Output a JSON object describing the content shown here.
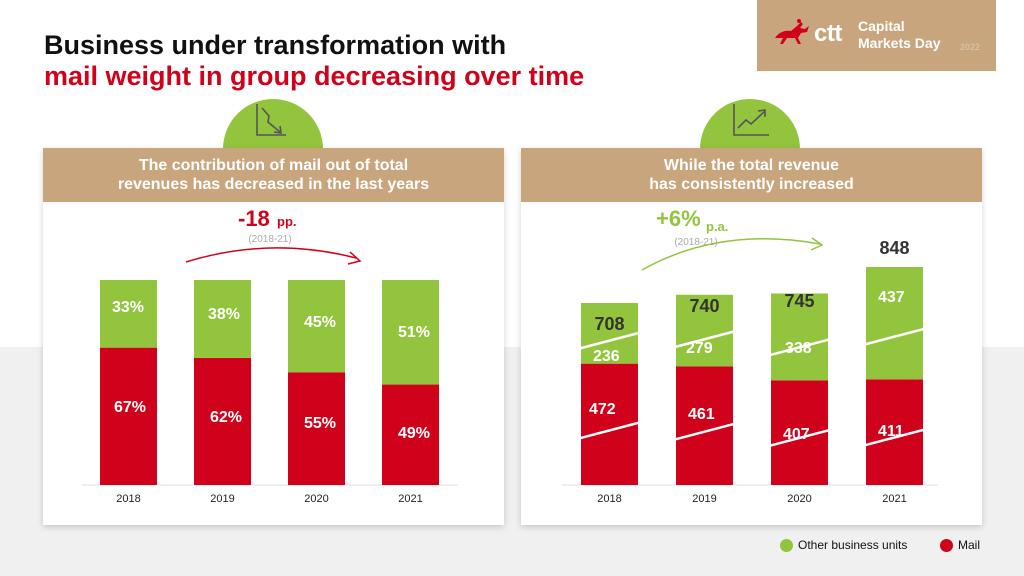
{
  "title": {
    "line1": "Business under transformation with",
    "line2": "mail weight in group decreasing over time"
  },
  "logo": {
    "brand": "ctt",
    "event_line1": "Capital",
    "event_line2": "Markets Day",
    "event_year": "2022"
  },
  "colors": {
    "mail": "#d0021b",
    "other": "#93c43d",
    "header": "#c8a57d",
    "title_red": "#d0021b"
  },
  "panels": {
    "left": {
      "header_line1": "The contribution of mail out of total",
      "header_line2": "revenues has decreased in the last years",
      "icon": "trend-down-icon"
    },
    "right": {
      "header_line1": "While the total revenue",
      "header_line2": "has consistently increased",
      "icon": "trend-up-icon"
    }
  },
  "legend": {
    "other": "Other business units",
    "mail": "Mail"
  },
  "chart_data": [
    {
      "type": "bar",
      "stacked": true,
      "normalized": true,
      "categories": [
        "2018",
        "2019",
        "2020",
        "2021"
      ],
      "series": [
        {
          "name": "Mail",
          "values": [
            67,
            62,
            55,
            49
          ],
          "labels": [
            "67%",
            "62%",
            "55%",
            "49%"
          ]
        },
        {
          "name": "Other business units",
          "values": [
            33,
            38,
            45,
            51
          ],
          "labels": [
            "33%",
            "38%",
            "45%",
            "51%"
          ]
        }
      ],
      "annotation": {
        "value": "-18",
        "unit": "pp.",
        "period": "(2018-21)"
      },
      "ylim": [
        0,
        100
      ]
    },
    {
      "type": "bar",
      "stacked": true,
      "categories": [
        "2018",
        "2019",
        "2020",
        "2021"
      ],
      "series": [
        {
          "name": "Mail",
          "values": [
            472,
            461,
            407,
            411
          ]
        },
        {
          "name": "Other business units",
          "values": [
            236,
            279,
            338,
            437
          ]
        }
      ],
      "totals": [
        708,
        740,
        745,
        848
      ],
      "annotation": {
        "value": "+6%",
        "unit": "p.a.",
        "period": "(2018-21)"
      }
    }
  ]
}
